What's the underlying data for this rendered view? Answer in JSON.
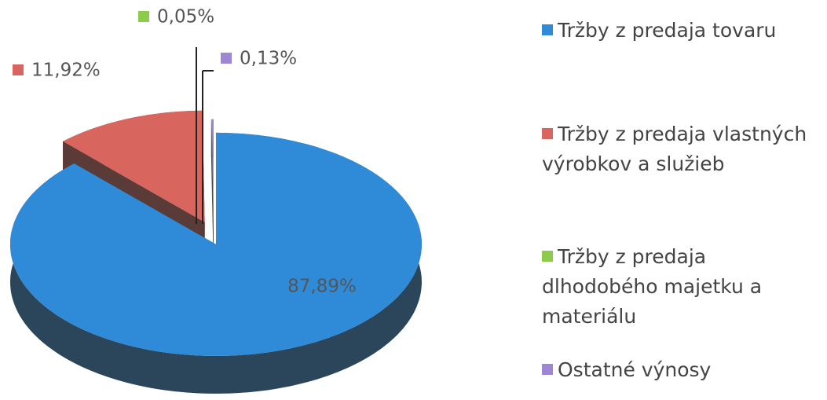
{
  "chart_data": {
    "type": "pie",
    "categories": [
      "Tržby z predaja tovaru",
      "Tržby z predaja vlastných výrobkov a služieb",
      "Tržby z predaja dlhodobého majetku a materiálu",
      "Ostatné výnosy"
    ],
    "values": [
      87.89,
      11.92,
      0.05,
      0.13
    ],
    "value_labels": [
      "87,89%",
      "11,92%",
      "0,05%",
      "0,13%"
    ],
    "colors": [
      "#2f8bd8",
      "#d9665e",
      "#8ccc4c",
      "#9d87d2"
    ],
    "legend": "right"
  }
}
